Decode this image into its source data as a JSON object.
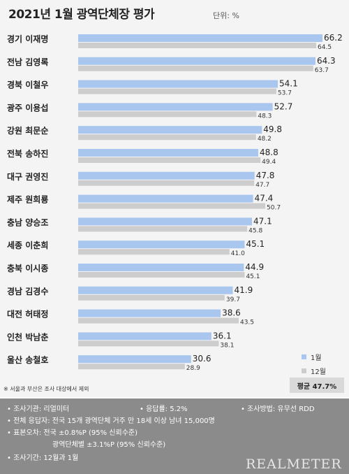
{
  "title": "2021년 1월 광역단체장 평가",
  "unit": "단위: %",
  "chart_data": {
    "type": "bar",
    "orientation": "horizontal",
    "title": "2021년 1월 광역단체장 평가",
    "categories": [
      "경기 이재명",
      "전남 김영록",
      "경북 이철우",
      "광주 이용섭",
      "강원 최문순",
      "전북 송하진",
      "대구 권영진",
      "제주 원희룡",
      "충남 양승조",
      "세종 이춘희",
      "충북 이시종",
      "경남 김경수",
      "대전 허태정",
      "인천 박남춘",
      "울산 송철호"
    ],
    "series": [
      {
        "name": "1월",
        "color": "#a9c6ee",
        "values": [
          66.2,
          64.3,
          54.1,
          52.7,
          49.8,
          48.8,
          47.8,
          47.4,
          47.1,
          45.1,
          44.9,
          41.9,
          38.6,
          36.1,
          30.6
        ]
      },
      {
        "name": "12월",
        "color": "#cdcdcd",
        "values": [
          64.5,
          63.7,
          53.7,
          48.3,
          48.2,
          49.4,
          47.7,
          50.7,
          45.8,
          41.0,
          45.1,
          39.7,
          43.5,
          38.1,
          28.9
        ]
      }
    ],
    "xlim": [
      0,
      66.2
    ],
    "grid": false,
    "legend": "bottom-right"
  },
  "legend": {
    "jan": "1월",
    "dec": "12월"
  },
  "average": "평균 47.7%",
  "footnote": "※ 서울과 부산은 조사 대상에서 제외",
  "info": {
    "agency": "• 조사기관: 리얼미터",
    "response_rate": "• 응답률: 5.2%",
    "method": "• 조사방법: 유무선 RDD",
    "respondents": "• 전체 응답자: 전국 15개 광역단체 거주 만 18세 이상 남녀 15,000명",
    "error_national": "• 표본오차: 전국 ±0.8%P (95% 신뢰수준)",
    "error_regional": "광역단체별 ±3.1%P (95% 신뢰수준)",
    "period": "• 조사기간: 12월과 1월",
    "brand": "REALMETER"
  }
}
